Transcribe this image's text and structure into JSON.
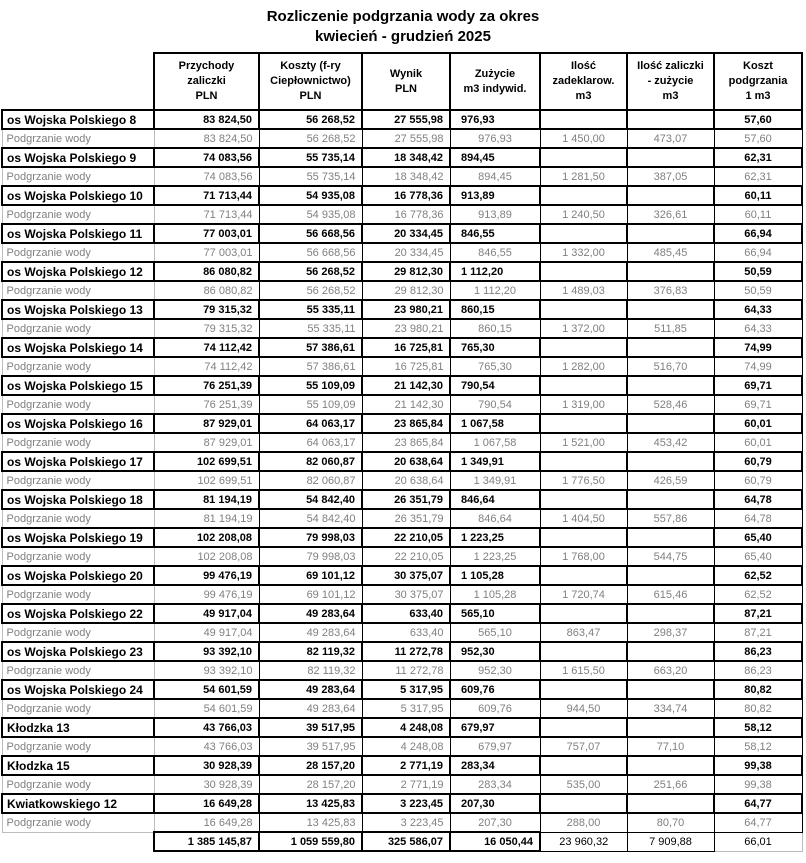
{
  "title": {
    "line1": "Rozliczenie podgrzania wody za okres",
    "line2": "kwiecień - grudzień 2025"
  },
  "table": {
    "column_ids": [
      "przychody-zaliczki-pln",
      "koszty-pln",
      "wynik-pln",
      "zuzycie-m3-indywid",
      "ilosc-zadeklarowana-m3",
      "zaliczka-minus-zuzycie-m3",
      "koszt-podgrzania-1m3"
    ],
    "columns": [
      "Przychody\nzaliczki\nPLN",
      "Koszty (f-ry\nCiepłownictwo)\nPLN",
      "Wynik\nPLN",
      "Zużycie\nm3 indywid.",
      "Ilość\nzadeklarow.\nm3",
      "Ilość zaliczki\n- zużycie\nm3",
      "Koszt\npodgrzania\n1 m3"
    ],
    "sub_row_label": "Podgrzanie wody",
    "rows": [
      {
        "t": "main",
        "name": "os Wojska Polskiego 8",
        "c": [
          "83 824,50",
          "56 268,52",
          "27 555,98",
          "976,93",
          "",
          "",
          "57,60"
        ]
      },
      {
        "t": "sub",
        "name": "Podgrzanie wody",
        "c": [
          "83 824,50",
          "56 268,52",
          "27 555,98",
          "976,93",
          "1 450,00",
          "473,07",
          "57,60"
        ]
      },
      {
        "t": "main",
        "name": "os Wojska Polskiego 9",
        "c": [
          "74 083,56",
          "55 735,14",
          "18 348,42",
          "894,45",
          "",
          "",
          "62,31"
        ]
      },
      {
        "t": "sub",
        "name": "Podgrzanie wody",
        "c": [
          "74 083,56",
          "55 735,14",
          "18 348,42",
          "894,45",
          "1 281,50",
          "387,05",
          "62,31"
        ]
      },
      {
        "t": "main",
        "name": "os Wojska Polskiego 10",
        "c": [
          "71 713,44",
          "54 935,08",
          "16 778,36",
          "913,89",
          "",
          "",
          "60,11"
        ]
      },
      {
        "t": "sub",
        "name": "Podgrzanie wody",
        "c": [
          "71 713,44",
          "54 935,08",
          "16 778,36",
          "913,89",
          "1 240,50",
          "326,61",
          "60,11"
        ]
      },
      {
        "t": "main",
        "name": "os Wojska Polskiego 11",
        "c": [
          "77 003,01",
          "56 668,56",
          "20 334,45",
          "846,55",
          "",
          "",
          "66,94"
        ]
      },
      {
        "t": "sub",
        "name": "Podgrzanie wody",
        "c": [
          "77 003,01",
          "56 668,56",
          "20 334,45",
          "846,55",
          "1 332,00",
          "485,45",
          "66,94"
        ]
      },
      {
        "t": "main",
        "name": "os Wojska Polskiego 12",
        "c": [
          "86 080,82",
          "56 268,52",
          "29 812,30",
          "1 112,20",
          "",
          "",
          "50,59"
        ]
      },
      {
        "t": "sub",
        "name": "Podgrzanie wody",
        "c": [
          "86 080,82",
          "56 268,52",
          "29 812,30",
          "1 112,20",
          "1 489,03",
          "376,83",
          "50,59"
        ]
      },
      {
        "t": "main",
        "name": "os Wojska Polskiego 13",
        "c": [
          "79 315,32",
          "55 335,11",
          "23 980,21",
          "860,15",
          "",
          "",
          "64,33"
        ]
      },
      {
        "t": "sub",
        "name": "Podgrzanie wody",
        "c": [
          "79 315,32",
          "55 335,11",
          "23 980,21",
          "860,15",
          "1 372,00",
          "511,85",
          "64,33"
        ]
      },
      {
        "t": "main",
        "name": "os Wojska Polskiego 14",
        "c": [
          "74 112,42",
          "57 386,61",
          "16 725,81",
          "765,30",
          "",
          "",
          "74,99"
        ]
      },
      {
        "t": "sub",
        "name": "Podgrzanie wody",
        "c": [
          "74 112,42",
          "57 386,61",
          "16 725,81",
          "765,30",
          "1 282,00",
          "516,70",
          "74,99"
        ]
      },
      {
        "t": "main",
        "name": "os Wojska Polskiego 15",
        "c": [
          "76 251,39",
          "55 109,09",
          "21 142,30",
          "790,54",
          "",
          "",
          "69,71"
        ]
      },
      {
        "t": "sub",
        "name": "Podgrzanie wody",
        "c": [
          "76 251,39",
          "55 109,09",
          "21 142,30",
          "790,54",
          "1 319,00",
          "528,46",
          "69,71"
        ]
      },
      {
        "t": "main",
        "name": "os Wojska Polskiego 16",
        "c": [
          "87 929,01",
          "64 063,17",
          "23 865,84",
          "1 067,58",
          "",
          "",
          "60,01"
        ]
      },
      {
        "t": "sub",
        "name": "Podgrzanie wody",
        "c": [
          "87 929,01",
          "64 063,17",
          "23 865,84",
          "1 067,58",
          "1 521,00",
          "453,42",
          "60,01"
        ]
      },
      {
        "t": "main",
        "name": "os Wojska Polskiego 17",
        "c": [
          "102 699,51",
          "82 060,87",
          "20 638,64",
          "1 349,91",
          "",
          "",
          "60,79"
        ]
      },
      {
        "t": "sub",
        "name": "Podgrzanie wody",
        "c": [
          "102 699,51",
          "82 060,87",
          "20 638,64",
          "1 349,91",
          "1 776,50",
          "426,59",
          "60,79"
        ]
      },
      {
        "t": "main",
        "name": "os Wojska Polskiego 18",
        "c": [
          "81 194,19",
          "54 842,40",
          "26 351,79",
          "846,64",
          "",
          "",
          "64,78"
        ]
      },
      {
        "t": "sub",
        "name": "Podgrzanie wody",
        "c": [
          "81 194,19",
          "54 842,40",
          "26 351,79",
          "846,64",
          "1 404,50",
          "557,86",
          "64,78"
        ]
      },
      {
        "t": "main",
        "name": "os Wojska Polskiego 19",
        "c": [
          "102 208,08",
          "79 998,03",
          "22 210,05",
          "1 223,25",
          "",
          "",
          "65,40"
        ]
      },
      {
        "t": "sub",
        "name": "Podgrzanie wody",
        "c": [
          "102 208,08",
          "79 998,03",
          "22 210,05",
          "1 223,25",
          "1 768,00",
          "544,75",
          "65,40"
        ]
      },
      {
        "t": "main",
        "name": "os Wojska Polskiego 20",
        "c": [
          "99 476,19",
          "69 101,12",
          "30 375,07",
          "1 105,28",
          "",
          "",
          "62,52"
        ]
      },
      {
        "t": "sub",
        "name": "Podgrzanie wody",
        "c": [
          "99 476,19",
          "69 101,12",
          "30 375,07",
          "1 105,28",
          "1 720,74",
          "615,46",
          "62,52"
        ]
      },
      {
        "t": "main",
        "name": "os Wojska Polskiego 22",
        "c": [
          "49 917,04",
          "49 283,64",
          "633,40",
          "565,10",
          "",
          "",
          "87,21"
        ]
      },
      {
        "t": "sub",
        "name": "Podgrzanie wody",
        "c": [
          "49 917,04",
          "49 283,64",
          "633,40",
          "565,10",
          "863,47",
          "298,37",
          "87,21"
        ]
      },
      {
        "t": "main",
        "name": "os Wojska Polskiego 23",
        "c": [
          "93 392,10",
          "82 119,32",
          "11 272,78",
          "952,30",
          "",
          "",
          "86,23"
        ]
      },
      {
        "t": "sub",
        "name": "Podgrzanie wody",
        "c": [
          "93 392,10",
          "82 119,32",
          "11 272,78",
          "952,30",
          "1 615,50",
          "663,20",
          "86,23"
        ]
      },
      {
        "t": "main",
        "name": "os Wojska Polskiego 24",
        "c": [
          "54 601,59",
          "49 283,64",
          "5 317,95",
          "609,76",
          "",
          "",
          "80,82"
        ]
      },
      {
        "t": "sub",
        "name": "Podgrzanie wody",
        "c": [
          "54 601,59",
          "49 283,64",
          "5 317,95",
          "609,76",
          "944,50",
          "334,74",
          "80,82"
        ]
      },
      {
        "t": "main",
        "name": "Kłodzka 13",
        "c": [
          "43 766,03",
          "39 517,95",
          "4 248,08",
          "679,97",
          "",
          "",
          "58,12"
        ]
      },
      {
        "t": "sub",
        "name": "Podgrzanie wody",
        "c": [
          "43 766,03",
          "39 517,95",
          "4 248,08",
          "679,97",
          "757,07",
          "77,10",
          "58,12"
        ]
      },
      {
        "t": "main",
        "name": "Kłodzka 15",
        "c": [
          "30 928,39",
          "28 157,20",
          "2 771,19",
          "283,34",
          "",
          "",
          "99,38"
        ]
      },
      {
        "t": "sub",
        "name": "Podgrzanie wody",
        "c": [
          "30 928,39",
          "28 157,20",
          "2 771,19",
          "283,34",
          "535,00",
          "251,66",
          "99,38"
        ]
      },
      {
        "t": "main",
        "name": "Kwiatkowskiego 12",
        "c": [
          "16 649,28",
          "13 425,83",
          "3 223,45",
          "207,30",
          "",
          "",
          "64,77"
        ]
      },
      {
        "t": "sub",
        "name": "Podgrzanie wody",
        "c": [
          "16 649,28",
          "13 425,83",
          "3 223,45",
          "207,30",
          "288,00",
          "80,70",
          "64,77"
        ]
      },
      {
        "t": "total",
        "name": "",
        "c": [
          "1 385 145,87",
          "1 059 559,80",
          "325 586,07",
          "16 050,44",
          "23 960,32",
          "7 909,88",
          "66,01"
        ]
      }
    ]
  }
}
